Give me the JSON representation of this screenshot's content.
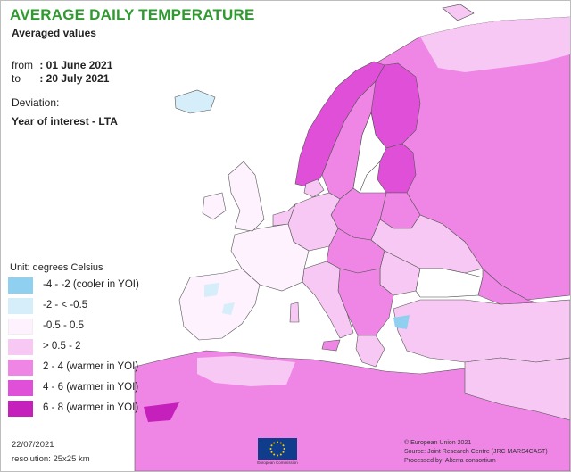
{
  "header": {
    "title": "AVERAGE DAILY TEMPERATURE",
    "subtitle": "Averaged values"
  },
  "period": {
    "from_label": "from",
    "from_value": ": 01 June 2021",
    "to_label": "to",
    "to_value": ": 20 July 2021"
  },
  "deviation": {
    "label": "Deviation:",
    "value": "Year of interest - LTA"
  },
  "legend": {
    "unit": "Unit: degrees Celsius",
    "items": [
      {
        "label": "-4 - -2 (cooler in YOI)",
        "color": "#8fd0f0"
      },
      {
        "label": "-2 - < -0.5",
        "color": "#d6eef9"
      },
      {
        "label": "-0.5 - 0.5",
        "color": "#fdf2fd"
      },
      {
        "label": "> 0.5 - 2",
        "color": "#f7c8f3"
      },
      {
        "label": "2 - 4 (warmer in YOI)",
        "color": "#ef86e6"
      },
      {
        "label": "4 - 6 (warmer in YOI)",
        "color": "#e04fd8"
      },
      {
        "label": "6 - 8 (warmer in YOI)",
        "color": "#c51fbc"
      }
    ]
  },
  "footer": {
    "date": "22/07/2021",
    "resolution": "resolution: 25x25 km",
    "credits": [
      "© European Union 2021",
      "Source: Joint Research Centre (JRC MARS4CAST)",
      "Processed by: Alterra consortium"
    ],
    "eu_org": "European Commission"
  },
  "map_colors": {
    "sea": "#ffffff",
    "border": "#555555",
    "coast": "#444444"
  }
}
